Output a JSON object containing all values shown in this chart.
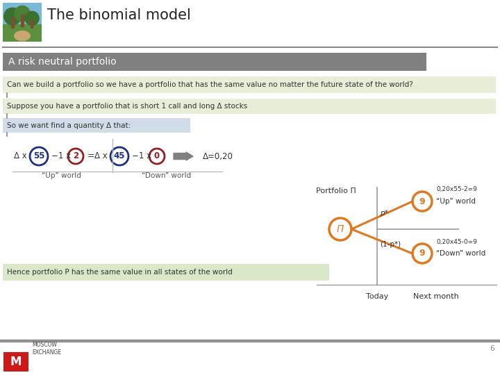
{
  "title": "The binomial model",
  "subtitle": "A risk neutral portfolio",
  "text1": "Can we build a portfolio so we have a portfolio that has the same value no matter the future state of the world?",
  "text2": "Suppose you have a portfolio that is short 1 call and long Δ stocks",
  "text3": "So we want find a quantity Δ that:",
  "text4": "Hence portfolio P has the same value in all states of the world",
  "delta_result": "Δ=0,20",
  "up_val1": "55",
  "up_val2": "2",
  "down_val1": "45",
  "down_val2": "0",
  "portfolio_label": "Portfolio Π",
  "pi_label": "Π",
  "up_node": "9",
  "down_node": "9",
  "up_prob": "p*",
  "down_prob": "(1-p*)",
  "up_formula": "0,20x55-2=9",
  "down_formula": "0,20x45-0=9",
  "up_world_label": "“Up” world",
  "down_world_label": "“Down” world",
  "today_label": "Today",
  "next_month_label": "Next month",
  "page_num": "6",
  "bg_color": "#ffffff",
  "header_line_color": "#888888",
  "subtitle_bg": "#808080",
  "subtitle_text_color": "#ffffff",
  "green_bg": "#e8edd8",
  "blue_box_bg": "#d0dce8",
  "blue_circle_color": "#1a3080",
  "red_circle_color": "#902020",
  "orange_color": "#e07820",
  "arrow_color": "#808080",
  "text_color": "#303030",
  "hence_box_bg": "#d8e8c8",
  "connector_color": "#888888"
}
